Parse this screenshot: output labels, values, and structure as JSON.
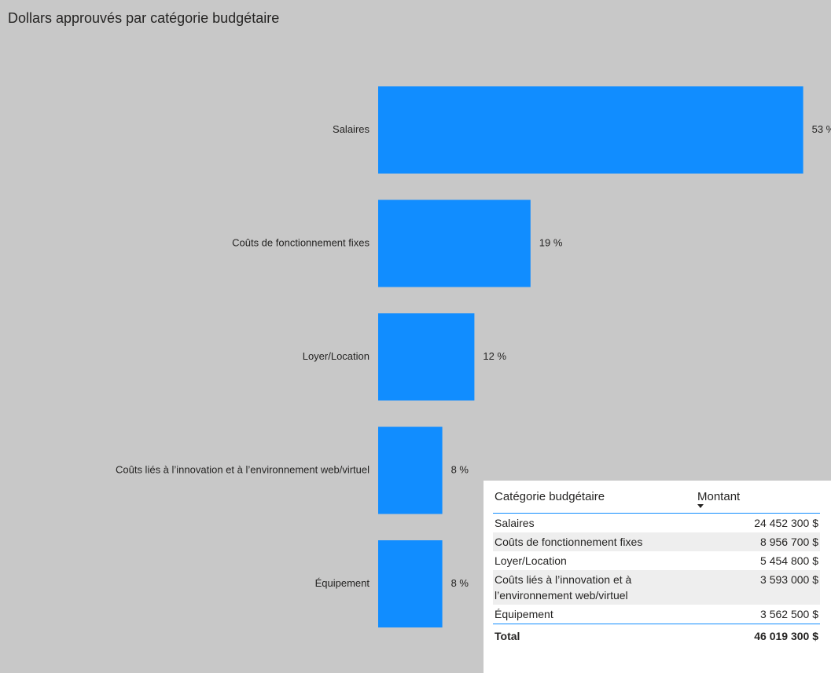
{
  "chart_data": {
    "type": "bar",
    "orientation": "horizontal",
    "title": "Dollars approuvés par catégorie budgétaire",
    "categories": [
      "Salaires",
      "Coûts de fonctionnement fixes",
      "Loyer/Location",
      "Coûts liés à l’innovation et à l’environnement web/virtuel",
      "Équipement"
    ],
    "values": [
      53,
      19,
      12,
      8,
      8
    ],
    "value_labels": [
      "53 %",
      "19 %",
      "12 %",
      "8 %",
      "8 %"
    ],
    "color": "#118dff"
  },
  "table": {
    "columns": [
      "Catégorie budgétaire",
      "Montant"
    ],
    "rows": [
      [
        "Salaires",
        "24 452 300 $"
      ],
      [
        "Coûts de fonctionnement fixes",
        "8 956 700 $"
      ],
      [
        "Loyer/Location",
        "5 454 800 $"
      ],
      [
        "Coûts liés à l’innovation et à l’environnement web/virtuel",
        "3 593 000 $"
      ],
      [
        "Équipement",
        "3 562 500 $"
      ]
    ],
    "total": [
      "Total",
      "46 019 300 $"
    ]
  }
}
